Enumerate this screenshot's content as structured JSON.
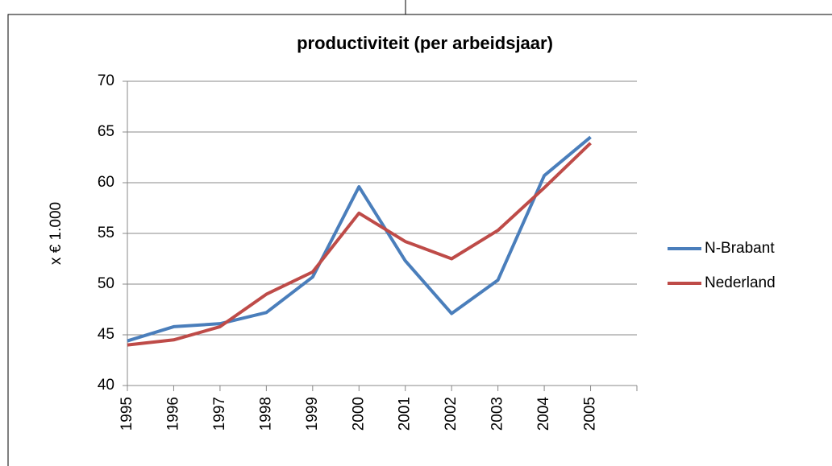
{
  "chart_data": {
    "type": "line",
    "title": "productiviteit (per arbeidsjaar)",
    "ylabel": "x € 1.000",
    "categories": [
      "1995",
      "1996",
      "1997",
      "1998",
      "1999",
      "2000",
      "2001",
      "2002",
      "2003",
      "2004",
      "2005"
    ],
    "series": [
      {
        "name": "N-Brabant",
        "color": "#4a7ebb",
        "values": [
          44.4,
          45.8,
          46.1,
          47.2,
          50.7,
          59.6,
          52.3,
          47.1,
          50.4,
          60.7,
          64.5
        ]
      },
      {
        "name": "Nederland",
        "color": "#be4b48",
        "values": [
          44.0,
          44.5,
          45.8,
          49.0,
          51.2,
          57.0,
          54.2,
          52.5,
          55.3,
          59.5,
          63.9
        ]
      }
    ],
    "ylim": [
      40,
      70
    ],
    "yticks": [
      40,
      45,
      50,
      55,
      60,
      65,
      70
    ],
    "grid": true,
    "legend": "right"
  }
}
